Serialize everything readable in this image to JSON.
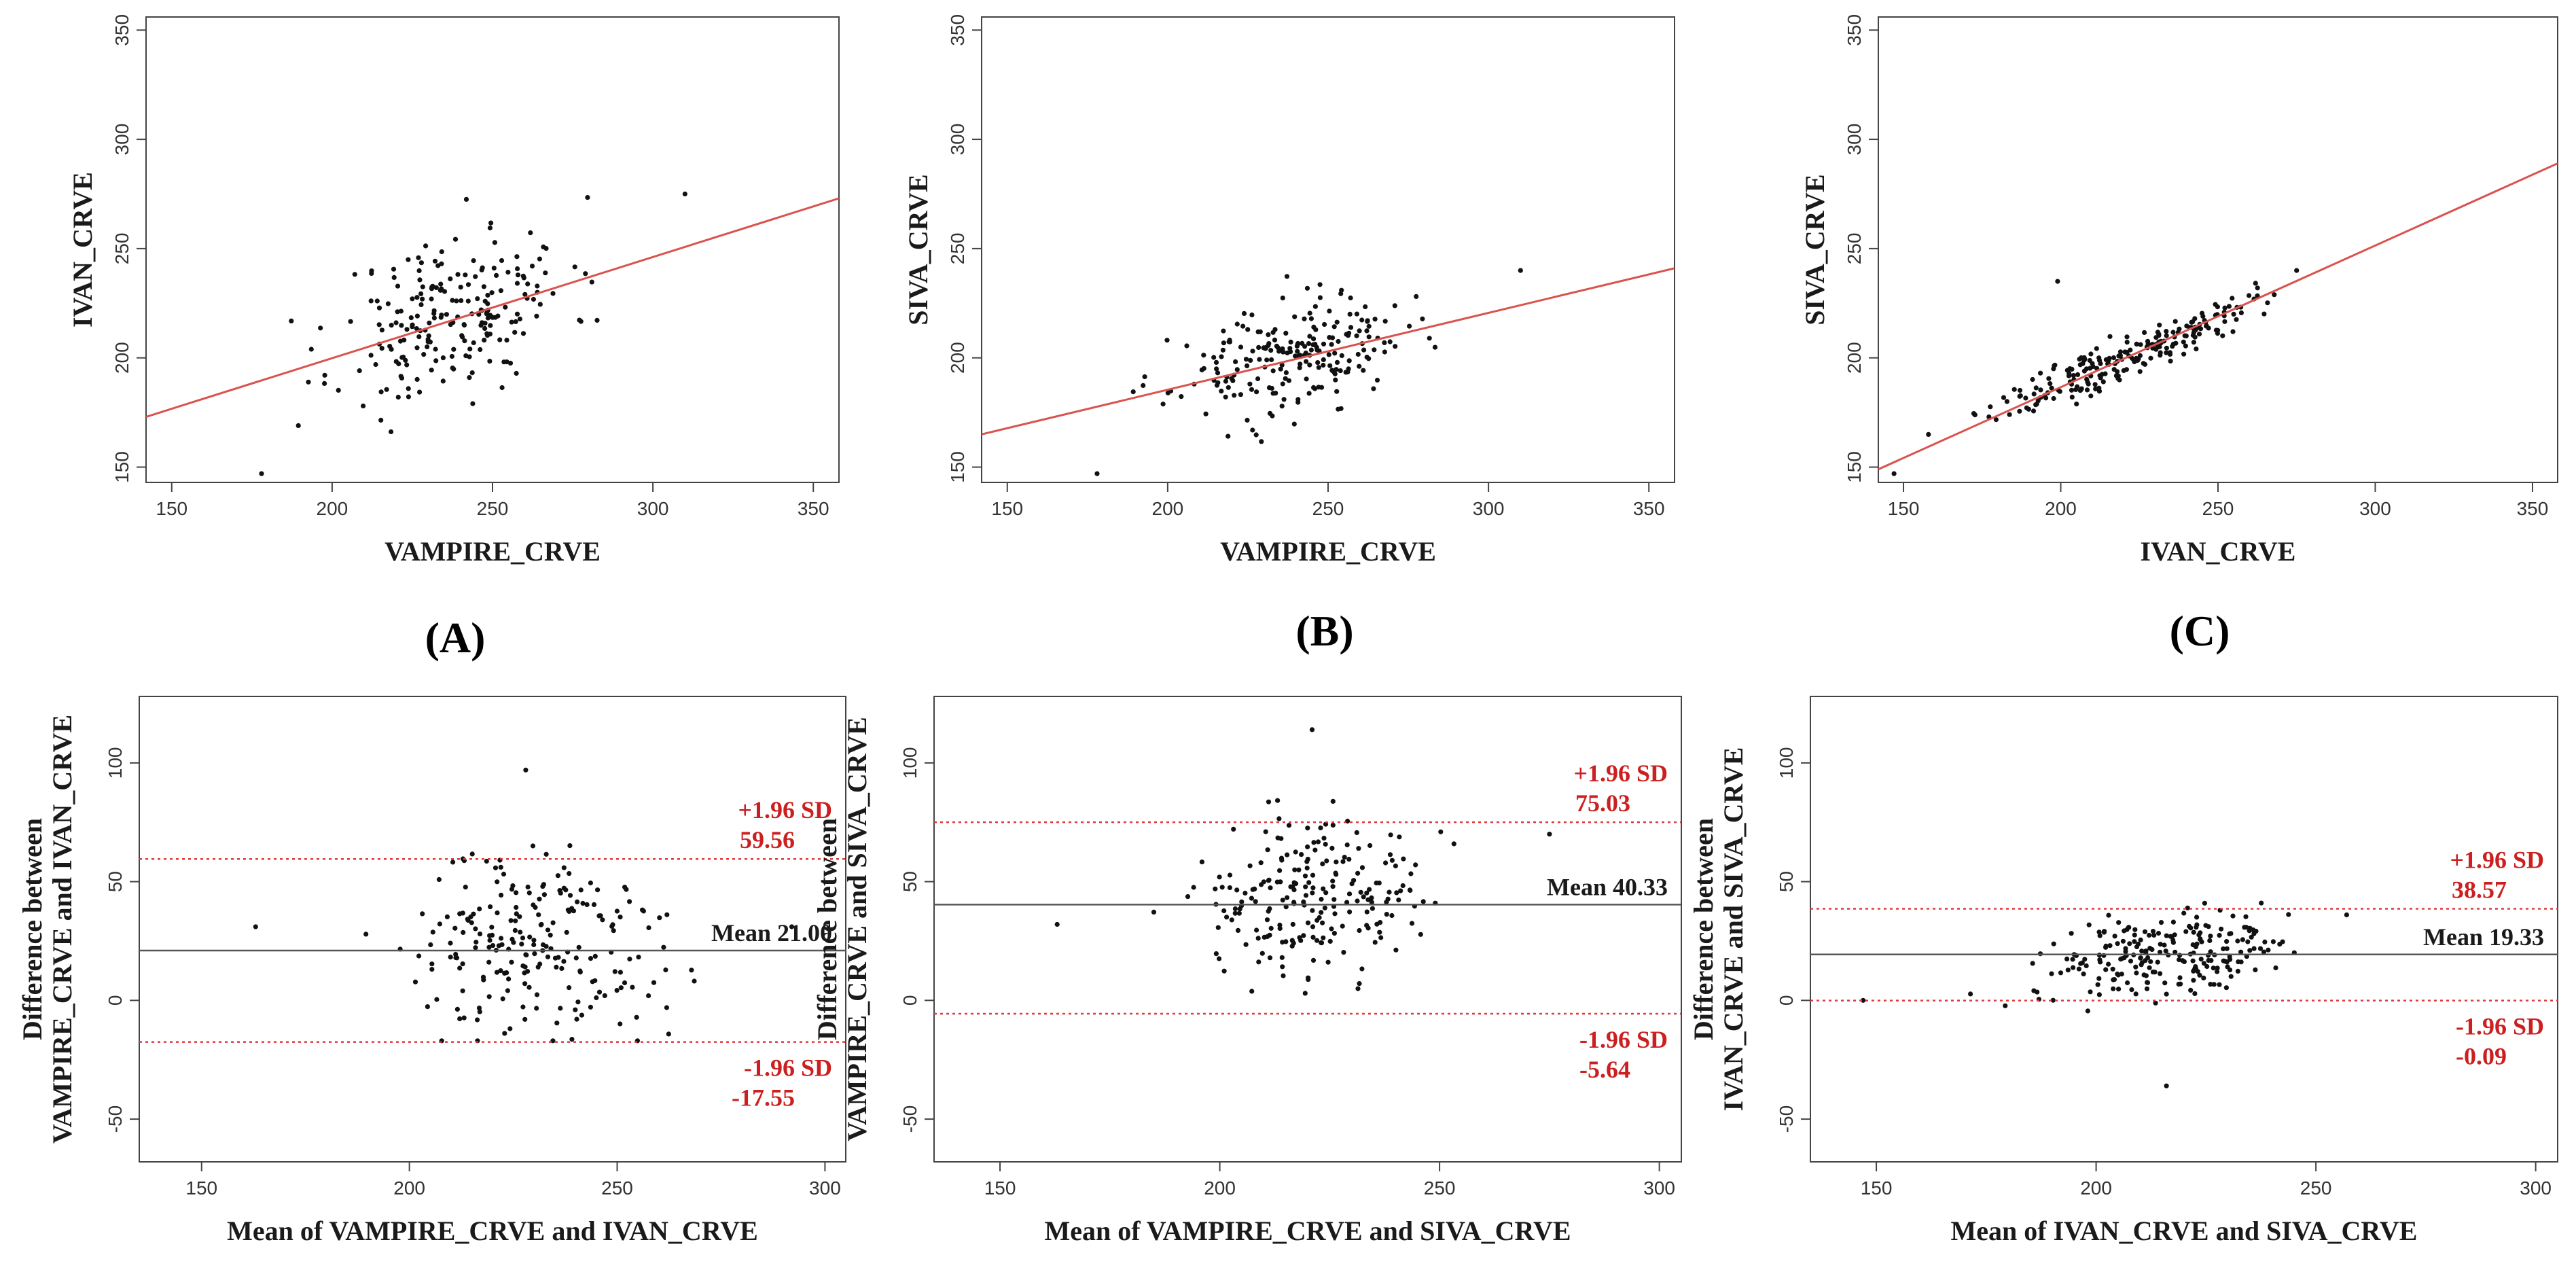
{
  "colors": {
    "point": "#111111",
    "regression": "#d9534f",
    "mean_line": "#555555",
    "limit_line": "#e0393e",
    "annotation": "#cc1f1f",
    "frame": "#444444"
  },
  "panel_labels": [
    "(A)",
    "(B)",
    "(C)"
  ],
  "chart_data": [
    {
      "type": "scatter",
      "panel": "A-top",
      "xlabel": "VAMPIRE_CRVE",
      "ylabel": "IVAN_CRVE",
      "xlim": [
        142,
        358
      ],
      "ylim": [
        143,
        356
      ],
      "xticks": [
        150,
        200,
        250,
        300,
        350
      ],
      "yticks": [
        150,
        200,
        250,
        300,
        350
      ],
      "regression": {
        "x": [
          142,
          358
        ],
        "y": [
          173,
          273
        ]
      },
      "points_summary": {
        "n_approx": 220,
        "x_range": [
          178,
          310
        ],
        "y_range": [
          147,
          275
        ],
        "center": [
          238,
          220
        ],
        "x_sd": 18,
        "y_sd": 20,
        "corr": 0.35,
        "seed": 11
      },
      "outliers": [
        [
          178,
          147
        ],
        [
          310,
          275
        ]
      ]
    },
    {
      "type": "scatter",
      "panel": "B-top",
      "xlabel": "VAMPIRE_CRVE",
      "ylabel": "SIVA_CRVE",
      "xlim": [
        142,
        358
      ],
      "ylim": [
        143,
        356
      ],
      "xticks": [
        150,
        200,
        250,
        300,
        350
      ],
      "yticks": [
        150,
        200,
        250,
        300,
        350
      ],
      "regression": {
        "x": [
          142,
          358
        ],
        "y": [
          165,
          241
        ]
      },
      "points_summary": {
        "n_approx": 220,
        "x_range": [
          178,
          310
        ],
        "y_range": [
          147,
          240
        ],
        "center": [
          238,
          200
        ],
        "x_sd": 18,
        "y_sd": 13,
        "corr": 0.35,
        "seed": 23
      },
      "outliers": [
        [
          178,
          147
        ],
        [
          310,
          240
        ]
      ]
    },
    {
      "type": "scatter",
      "panel": "C-top",
      "xlabel": "IVAN_CRVE",
      "ylabel": "SIVA_CRVE",
      "xlim": [
        142,
        358
      ],
      "ylim": [
        143,
        356
      ],
      "xticks": [
        150,
        200,
        250,
        300,
        350
      ],
      "yticks": [
        150,
        200,
        250,
        300,
        350
      ],
      "regression": {
        "x": [
          142,
          358
        ],
        "y": [
          149,
          289
        ]
      },
      "points_summary": {
        "n_approx": 230,
        "x_range": [
          147,
          275
        ],
        "y_range": [
          147,
          240
        ],
        "center": [
          220,
          200
        ],
        "x_sd": 20,
        "y_sd": 13,
        "corr": 0.92,
        "seed": 37
      },
      "outliers": [
        [
          147,
          147
        ],
        [
          275,
          240
        ],
        [
          199,
          235
        ]
      ]
    },
    {
      "type": "scatter",
      "panel": "A-bottom",
      "xlabel": "Mean of VAMPIRE_CRVE and IVAN_CRVE",
      "ylabel": "Difference between VAMPIRE_CRVE and IVAN_CRVE",
      "xlim": [
        135,
        305
      ],
      "ylim": [
        -68,
        128
      ],
      "xticks": [
        150,
        200,
        250,
        300
      ],
      "yticks": [
        -50,
        0,
        50,
        100
      ],
      "mean": 21.0,
      "upper_loa": 59.56,
      "lower_loa": -17.55,
      "annotations": {
        "mean": "Mean 21.00",
        "upper_label": "+1.96 SD",
        "upper_value": "59.56",
        "lower_label": "-1.96 SD",
        "lower_value": "-17.55"
      },
      "points_summary": {
        "n_approx": 220,
        "x_range": [
          163,
          292
        ],
        "y_range": [
          -17,
          97
        ],
        "center": [
          230,
          22
        ],
        "x_sd": 16,
        "y_sd": 20,
        "corr": 0.0,
        "seed": 51
      },
      "outliers": [
        [
          163,
          31
        ],
        [
          228,
          97
        ],
        [
          292,
          31
        ]
      ]
    },
    {
      "type": "scatter",
      "panel": "B-bottom",
      "xlabel": "Mean of VAMPIRE_CRVE and SIVA_CRVE",
      "ylabel": "Difference between VAMPIRE_CRVE and SIVA_CRVE",
      "xlim": [
        135,
        305
      ],
      "ylim": [
        -68,
        128
      ],
      "xticks": [
        150,
        200,
        250,
        300
      ],
      "yticks": [
        -50,
        0,
        50,
        100
      ],
      "mean": 40.33,
      "upper_loa": 75.03,
      "lower_loa": -5.64,
      "annotations": {
        "mean": "Mean 40.33",
        "upper_label": "+1.96 SD",
        "upper_value": "75.03",
        "lower_label": "-1.96 SD",
        "lower_value": "-5.64"
      },
      "points_summary": {
        "n_approx": 220,
        "x_range": [
          163,
          275
        ],
        "y_range": [
          3,
          114
        ],
        "center": [
          220,
          40
        ],
        "x_sd": 12,
        "y_sd": 17,
        "corr": 0.1,
        "seed": 67
      },
      "outliers": [
        [
          163,
          32
        ],
        [
          221,
          114
        ],
        [
          275,
          70
        ]
      ]
    },
    {
      "type": "scatter",
      "panel": "C-bottom",
      "xlabel": "Mean of IVAN_CRVE and SIVA_CRVE",
      "ylabel": "Difference between IVAN_CRVE and SIVA_CRVE",
      "xlim": [
        135,
        305
      ],
      "ylim": [
        -68,
        128
      ],
      "xticks": [
        150,
        200,
        250,
        300
      ],
      "yticks": [
        -50,
        0,
        50,
        100
      ],
      "mean": 19.33,
      "upper_loa": 38.57,
      "lower_loa": -0.09,
      "annotations": {
        "mean": "Mean 19.33",
        "upper_label": "+1.96 SD",
        "upper_value": "38.57",
        "lower_label": "-1.96 SD",
        "lower_value": "-0.09"
      },
      "points_summary": {
        "n_approx": 230,
        "x_range": [
          147,
          257
        ],
        "y_range": [
          -36,
          51
        ],
        "center": [
          215,
          20
        ],
        "x_sd": 14,
        "y_sd": 9,
        "corr": 0.3,
        "seed": 79
      },
      "outliers": [
        [
          147,
          0
        ],
        [
          216,
          -36
        ],
        [
          257,
          36
        ]
      ]
    }
  ]
}
